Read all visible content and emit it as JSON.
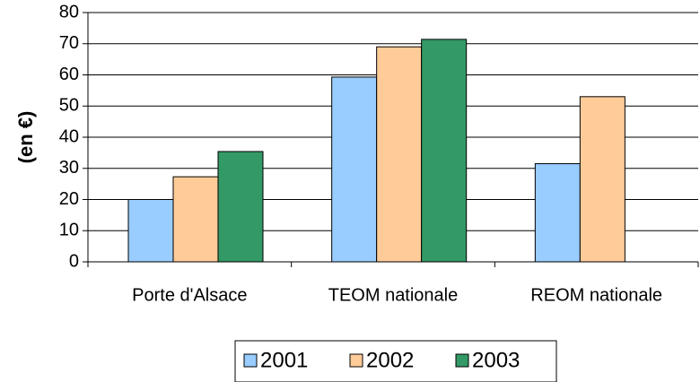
{
  "chart_data": {
    "type": "bar",
    "ylabel": "(en €)",
    "categories": [
      "Porte d'Alsace",
      "TEOM nationale",
      "REOM nationale"
    ],
    "series": [
      {
        "name": "2001",
        "color": "#99ccff",
        "values": [
          20,
          59.3,
          31.5
        ]
      },
      {
        "name": "2002",
        "color": "#ffcc99",
        "values": [
          27.3,
          69,
          53
        ]
      },
      {
        "name": "2003",
        "color": "#339966",
        "values": [
          35.4,
          71.4,
          null
        ]
      }
    ],
    "ylim": [
      0,
      80
    ],
    "yticks": [
      0,
      10,
      20,
      30,
      40,
      50,
      60,
      70,
      80
    ],
    "grid": true,
    "legend": "bottom"
  }
}
